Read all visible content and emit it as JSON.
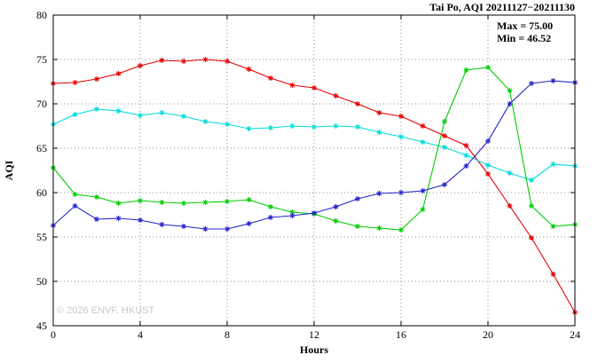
{
  "chart_data": {
    "type": "line",
    "title": "Tai Po, AQI 20211127−20211130",
    "xlabel": "Hours",
    "ylabel": "AQI",
    "xlim": [
      0,
      24
    ],
    "ylim": [
      45,
      80
    ],
    "xtick_step": 4,
    "ytick_step": 5,
    "grid": true,
    "legend": "none",
    "marker": "asterisk",
    "annotations": {
      "max": "Max = 75.00",
      "min": "Min = 46.52"
    },
    "watermark": "© 2026 ENVF, HKUST",
    "x": [
      0,
      1,
      2,
      3,
      4,
      5,
      6,
      7,
      8,
      9,
      10,
      11,
      12,
      13,
      14,
      15,
      16,
      17,
      18,
      19,
      20,
      21,
      22,
      23,
      24
    ],
    "series": [
      {
        "name": "red",
        "color": "#e60000",
        "values": [
          72.3,
          72.4,
          72.8,
          73.4,
          74.3,
          74.9,
          74.8,
          75.0,
          74.8,
          73.9,
          72.9,
          72.1,
          71.8,
          70.9,
          70.0,
          69.0,
          68.6,
          67.5,
          66.4,
          65.3,
          62.1,
          58.5,
          54.9,
          50.8,
          46.5
        ]
      },
      {
        "name": "cyan",
        "color": "#00dcdc",
        "values": [
          67.7,
          68.8,
          69.4,
          69.2,
          68.7,
          69.0,
          68.6,
          68.0,
          67.7,
          67.2,
          67.3,
          67.5,
          67.4,
          67.5,
          67.4,
          66.8,
          66.3,
          65.7,
          65.1,
          64.2,
          63.1,
          62.2,
          61.4,
          63.2,
          63.0
        ]
      },
      {
        "name": "green",
        "color": "#00cc00",
        "values": [
          62.8,
          59.8,
          59.5,
          58.8,
          59.1,
          58.9,
          58.8,
          58.9,
          59.0,
          59.2,
          58.4,
          57.8,
          57.6,
          56.8,
          56.2,
          56.0,
          55.8,
          58.1,
          68.0,
          73.8,
          74.1,
          71.5,
          58.5,
          56.2,
          56.4
        ]
      },
      {
        "name": "blue",
        "color": "#2222cc",
        "values": [
          56.3,
          58.5,
          57.0,
          57.1,
          56.9,
          56.4,
          56.2,
          55.9,
          55.9,
          56.5,
          57.2,
          57.4,
          57.7,
          58.4,
          59.3,
          59.9,
          60.0,
          60.2,
          60.9,
          63.0,
          65.8,
          70.0,
          72.3,
          72.6,
          72.4
        ]
      }
    ]
  }
}
